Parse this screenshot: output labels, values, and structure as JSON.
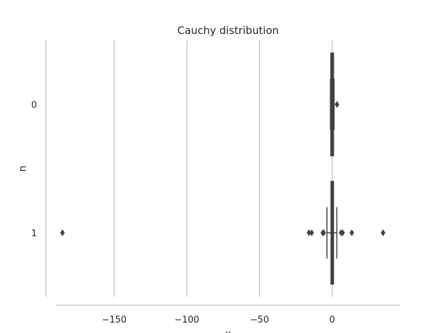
{
  "chart_data": {
    "type": "boxplot",
    "orientation": "horizontal",
    "title": "Cauchy distribution",
    "xlabel": "x",
    "ylabel": "n",
    "xlim": [
      -197,
      47
    ],
    "x_ticks": [
      -150,
      -100,
      -50,
      0
    ],
    "x_tick_labels": [
      "−150",
      "−100",
      "−50",
      "0"
    ],
    "categories": [
      "0",
      "1"
    ],
    "grid": "vertical",
    "boxes": [
      {
        "category": "0",
        "q1": -0.9,
        "median": -0.1,
        "q3": 0.9,
        "whisker_low": -1.2,
        "whisker_high": 1.3,
        "outliers": [
          3.3
        ]
      },
      {
        "category": "1",
        "q1": -0.8,
        "median": 0.0,
        "q3": 0.9,
        "whisker_low": -3.6,
        "whisker_high": 3.2,
        "outliers": [
          -185.6,
          -16.0,
          -14.1,
          -6.5,
          -5.8,
          6.1,
          7.2,
          13.5,
          35.0
        ]
      }
    ],
    "colors": {
      "box_fill": "#434343",
      "box_edge": "#3f3f3f",
      "grid": "#cccccc",
      "spine": "#cccccc",
      "text": "#262626"
    }
  }
}
